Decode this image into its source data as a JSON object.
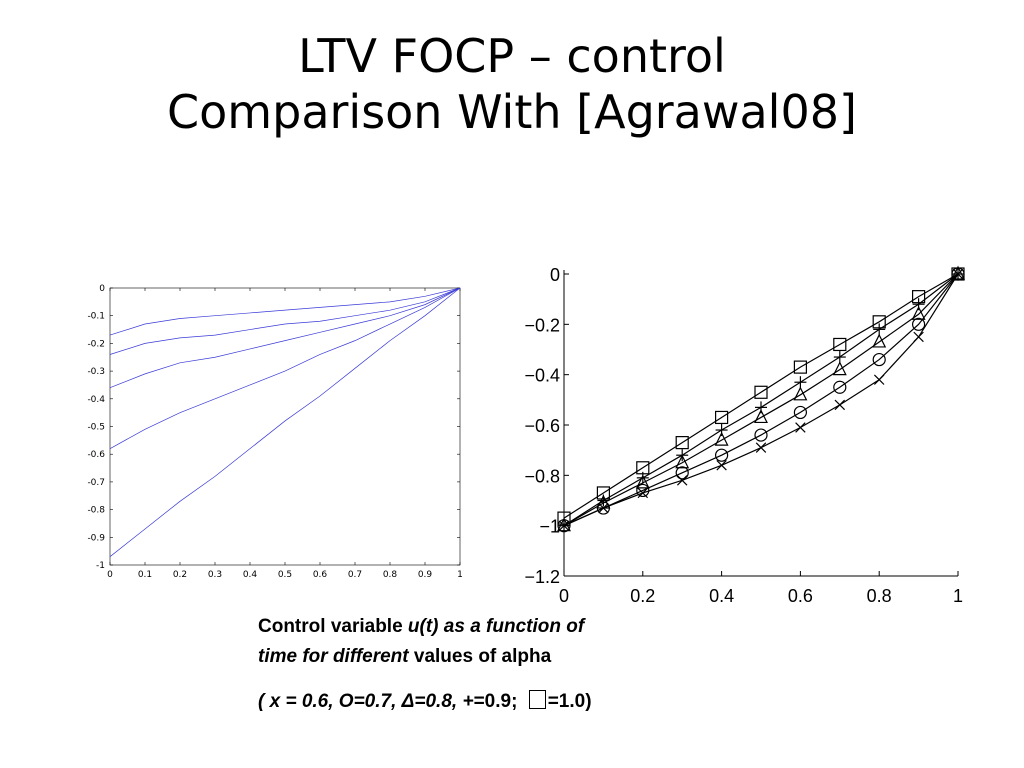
{
  "slide": {
    "title_line1": "LTV FOCP – control",
    "title_line2": "Comparison With [Agrawal08]"
  },
  "caption": {
    "part1": "Control variable ",
    "part2": "u(t) as a function of",
    "part3": "time for different",
    "part4": " values of alpha"
  },
  "legend": {
    "part1": "( x = 0.6,  O=0.7, Δ=0.8, +",
    "part2": "=0.9; ",
    "part3": "=1.0)"
  },
  "colors": {
    "left_series": "#3a3ad8",
    "right_series": "#000000"
  },
  "chart_data": [
    {
      "type": "line",
      "xlim": [
        0,
        1
      ],
      "ylim": [
        -1,
        0
      ],
      "x_ticks": [
        "0",
        "0.1",
        "0.2",
        "0.3",
        "0.4",
        "0.5",
        "0.6",
        "0.7",
        "0.8",
        "0.9",
        "1"
      ],
      "y_ticks": [
        "0",
        "-0.1",
        "-0.2",
        "-0.3",
        "-0.4",
        "-0.5",
        "-0.6",
        "-0.7",
        "-0.8",
        "-0.9",
        "-1"
      ],
      "grid": false,
      "x": [
        0,
        0.1,
        0.2,
        0.3,
        0.4,
        0.5,
        0.6,
        0.7,
        0.8,
        0.9,
        1.0
      ],
      "series": [
        {
          "values": [
            -0.17,
            -0.13,
            -0.11,
            -0.1,
            -0.09,
            -0.08,
            -0.07,
            -0.06,
            -0.05,
            -0.03,
            0.0
          ]
        },
        {
          "values": [
            -0.24,
            -0.2,
            -0.18,
            -0.17,
            -0.15,
            -0.13,
            -0.12,
            -0.1,
            -0.08,
            -0.05,
            0.0
          ]
        },
        {
          "values": [
            -0.36,
            -0.31,
            -0.27,
            -0.25,
            -0.22,
            -0.19,
            -0.16,
            -0.13,
            -0.1,
            -0.06,
            0.0
          ]
        },
        {
          "values": [
            -0.58,
            -0.51,
            -0.45,
            -0.4,
            -0.35,
            -0.3,
            -0.24,
            -0.19,
            -0.13,
            -0.07,
            0.0
          ]
        },
        {
          "values": [
            -0.97,
            -0.87,
            -0.77,
            -0.68,
            -0.58,
            -0.48,
            -0.39,
            -0.29,
            -0.19,
            -0.1,
            0.0
          ]
        }
      ]
    },
    {
      "type": "line",
      "xlim": [
        0,
        1
      ],
      "ylim": [
        -1.2,
        0
      ],
      "x_ticks": [
        "0",
        "0.2",
        "0.4",
        "0.6",
        "0.8",
        "1"
      ],
      "y_ticks": [
        "0",
        "−0.2",
        "−0.4",
        "−0.6",
        "−0.8",
        "−1",
        "−1.2"
      ],
      "grid": false,
      "x": [
        0,
        0.1,
        0.2,
        0.3,
        0.4,
        0.5,
        0.6,
        0.7,
        0.8,
        0.9,
        1.0
      ],
      "series": [
        {
          "name": "x",
          "marker": "x",
          "values": [
            -1.0,
            -0.93,
            -0.87,
            -0.82,
            -0.76,
            -0.69,
            -0.61,
            -0.52,
            -0.42,
            -0.25,
            0.0
          ]
        },
        {
          "name": "O",
          "marker": "circle",
          "values": [
            -1.0,
            -0.93,
            -0.86,
            -0.79,
            -0.72,
            -0.64,
            -0.55,
            -0.45,
            -0.34,
            -0.2,
            0.0
          ]
        },
        {
          "name": "Δ",
          "marker": "triangle",
          "values": [
            -1.0,
            -0.91,
            -0.83,
            -0.75,
            -0.66,
            -0.57,
            -0.48,
            -0.38,
            -0.27,
            -0.16,
            0.0
          ]
        },
        {
          "name": "+",
          "marker": "plus",
          "values": [
            -1.0,
            -0.9,
            -0.81,
            -0.72,
            -0.62,
            -0.53,
            -0.43,
            -0.33,
            -0.22,
            -0.12,
            0.0
          ]
        },
        {
          "name": "□",
          "marker": "square",
          "values": [
            -0.97,
            -0.87,
            -0.77,
            -0.67,
            -0.57,
            -0.47,
            -0.37,
            -0.28,
            -0.19,
            -0.09,
            0.0
          ]
        }
      ]
    }
  ]
}
